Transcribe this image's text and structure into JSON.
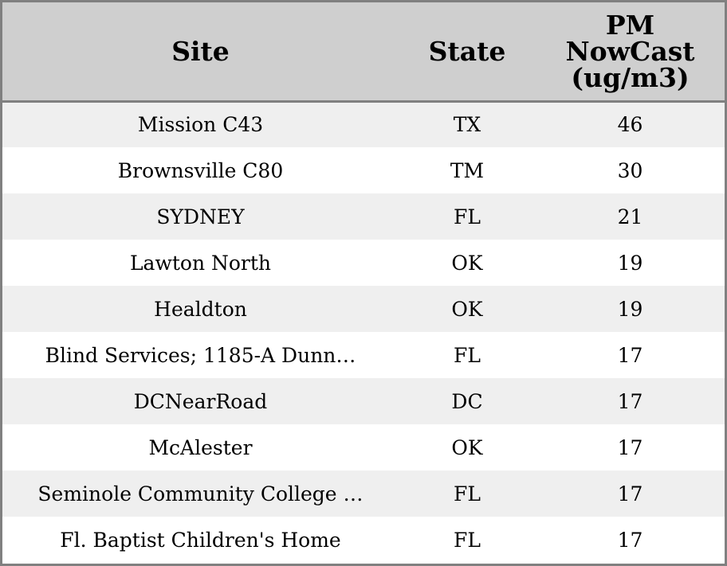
{
  "chart_data": {
    "type": "table",
    "columns": [
      "Site",
      "State",
      "PM NowCast (ug/m3)"
    ],
    "column_header_lines": [
      [
        "Site"
      ],
      [
        "State"
      ],
      [
        "PM",
        "NowCast",
        "(ug/m3)"
      ]
    ],
    "rows": [
      [
        "Mission C43",
        "TX",
        "46"
      ],
      [
        "Brownsville C80",
        "TM",
        "30"
      ],
      [
        "SYDNEY",
        "FL",
        "21"
      ],
      [
        "Lawton North",
        "OK",
        "19"
      ],
      [
        "Healdton",
        "OK",
        "19"
      ],
      [
        "Blind Services; 1185-A Dunn…",
        "FL",
        "17"
      ],
      [
        "DCNearRoad",
        "DC",
        "17"
      ],
      [
        "McAlester",
        "OK",
        "17"
      ],
      [
        "Seminole Community College …",
        "FL",
        "17"
      ],
      [
        "Fl. Baptist Children's Home",
        "FL",
        "17"
      ]
    ]
  },
  "colors": {
    "header_background": "#cfcfcf",
    "row_alt_background": "#efefef",
    "row_background": "#ffffff",
    "border": "#808080"
  }
}
